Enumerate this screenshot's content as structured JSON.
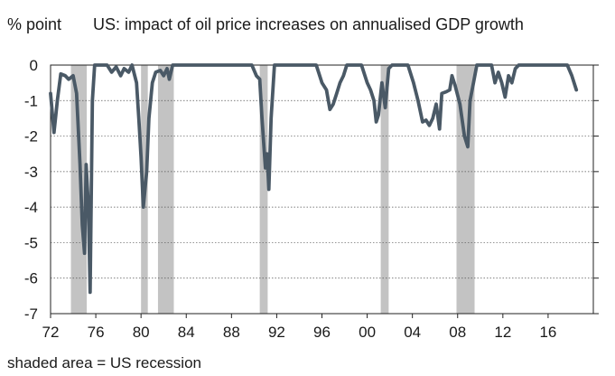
{
  "chart_data": {
    "type": "line",
    "title": "US: impact of oil price increases on annualised GDP growth",
    "ylabel": "% point",
    "note": "shaded area = US recession",
    "xlim": [
      1972,
      2020
    ],
    "ylim": [
      -7,
      0
    ],
    "yticks": [
      0,
      -1,
      -2,
      -3,
      -4,
      -5,
      -6,
      -7
    ],
    "xticks": [
      {
        "value": 1972,
        "label": "72"
      },
      {
        "value": 1976,
        "label": "76"
      },
      {
        "value": 1980,
        "label": "80"
      },
      {
        "value": 1984,
        "label": "84"
      },
      {
        "value": 1988,
        "label": "88"
      },
      {
        "value": 1992,
        "label": "92"
      },
      {
        "value": 1996,
        "label": "96"
      },
      {
        "value": 2000,
        "label": "00"
      },
      {
        "value": 2004,
        "label": "04"
      },
      {
        "value": 2008,
        "label": "08"
      },
      {
        "value": 2012,
        "label": "12"
      },
      {
        "value": 2016,
        "label": "16"
      }
    ],
    "grid": true,
    "recessions": [
      [
        1973.8,
        1975.2
      ],
      [
        1980.0,
        1980.6
      ],
      [
        1981.5,
        1982.9
      ],
      [
        1990.5,
        1991.2
      ],
      [
        2001.2,
        2001.9
      ],
      [
        2007.9,
        2009.5
      ]
    ],
    "series": [
      {
        "color": "#4a5966",
        "points": [
          [
            1972.0,
            -0.8
          ],
          [
            1972.3,
            -1.9
          ],
          [
            1972.6,
            -1.0
          ],
          [
            1972.9,
            -0.25
          ],
          [
            1973.3,
            -0.3
          ],
          [
            1973.6,
            -0.4
          ],
          [
            1974.0,
            -0.3
          ],
          [
            1974.3,
            -0.8
          ],
          [
            1974.6,
            -2.8
          ],
          [
            1974.8,
            -4.5
          ],
          [
            1975.0,
            -5.3
          ],
          [
            1975.15,
            -2.8
          ],
          [
            1975.35,
            -4.0
          ],
          [
            1975.5,
            -6.4
          ],
          [
            1975.7,
            -1.0
          ],
          [
            1975.9,
            0.0
          ],
          [
            1977.0,
            0.0
          ],
          [
            1977.4,
            -0.2
          ],
          [
            1977.8,
            -0.05
          ],
          [
            1978.2,
            -0.3
          ],
          [
            1978.5,
            -0.1
          ],
          [
            1978.9,
            -0.2
          ],
          [
            1979.2,
            0.0
          ],
          [
            1979.6,
            -0.5
          ],
          [
            1979.8,
            -1.5
          ],
          [
            1980.0,
            -2.6
          ],
          [
            1980.2,
            -4.0
          ],
          [
            1980.5,
            -3.0
          ],
          [
            1980.7,
            -1.5
          ],
          [
            1981.0,
            -0.5
          ],
          [
            1981.3,
            -0.2
          ],
          [
            1981.7,
            -0.15
          ],
          [
            1982.0,
            -0.3
          ],
          [
            1982.3,
            -0.1
          ],
          [
            1982.5,
            -0.4
          ],
          [
            1982.8,
            0.0
          ],
          [
            1989.8,
            0.0
          ],
          [
            1990.2,
            -0.3
          ],
          [
            1990.5,
            -0.4
          ],
          [
            1990.7,
            -1.5
          ],
          [
            1991.0,
            -2.9
          ],
          [
            1991.15,
            -2.5
          ],
          [
            1991.3,
            -3.5
          ],
          [
            1991.5,
            -1.5
          ],
          [
            1991.8,
            0.0
          ],
          [
            1995.5,
            0.0
          ],
          [
            1996.0,
            -0.5
          ],
          [
            1996.4,
            -0.7
          ],
          [
            1996.7,
            -1.25
          ],
          [
            1997.0,
            -1.1
          ],
          [
            1997.3,
            -0.8
          ],
          [
            1997.6,
            -0.5
          ],
          [
            1997.9,
            -0.3
          ],
          [
            1998.2,
            0.0
          ],
          [
            1999.5,
            0.0
          ],
          [
            2000.0,
            -0.5
          ],
          [
            2000.3,
            -0.7
          ],
          [
            2000.6,
            -1.0
          ],
          [
            2000.8,
            -1.6
          ],
          [
            2001.0,
            -1.4
          ],
          [
            2001.3,
            -0.5
          ],
          [
            2001.6,
            -1.2
          ],
          [
            2001.9,
            -0.1
          ],
          [
            2002.2,
            0.0
          ],
          [
            2003.6,
            0.0
          ],
          [
            2004.1,
            -0.5
          ],
          [
            2004.5,
            -1.0
          ],
          [
            2004.9,
            -1.6
          ],
          [
            2005.2,
            -1.55
          ],
          [
            2005.5,
            -1.7
          ],
          [
            2005.8,
            -1.5
          ],
          [
            2006.1,
            -1.1
          ],
          [
            2006.4,
            -1.8
          ],
          [
            2006.6,
            -0.8
          ],
          [
            2007.0,
            -0.75
          ],
          [
            2007.3,
            -0.7
          ],
          [
            2007.5,
            -0.3
          ],
          [
            2007.8,
            -0.6
          ],
          [
            2008.2,
            -1.1
          ],
          [
            2008.6,
            -2.0
          ],
          [
            2008.9,
            -2.3
          ],
          [
            2009.1,
            -1.0
          ],
          [
            2009.4,
            -0.5
          ],
          [
            2009.7,
            0.0
          ],
          [
            2011.0,
            0.0
          ],
          [
            2011.3,
            -0.5
          ],
          [
            2011.6,
            -0.2
          ],
          [
            2011.9,
            -0.5
          ],
          [
            2012.2,
            -0.9
          ],
          [
            2012.5,
            -0.3
          ],
          [
            2012.8,
            -0.5
          ],
          [
            2013.1,
            -0.1
          ],
          [
            2013.4,
            0.0
          ],
          [
            2017.7,
            0.0
          ],
          [
            2018.1,
            -0.3
          ],
          [
            2018.5,
            -0.7
          ]
        ]
      }
    ]
  }
}
